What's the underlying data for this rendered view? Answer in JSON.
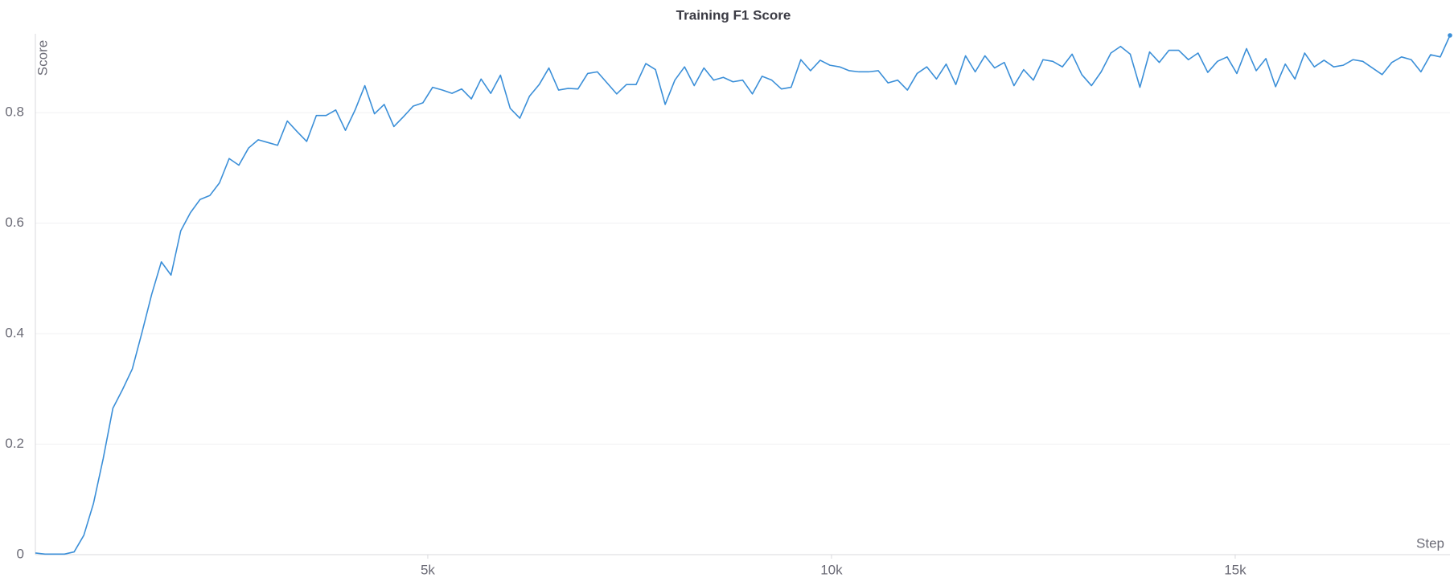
{
  "chart_data": {
    "type": "line",
    "title": "Training F1 Score",
    "y_label": "Score",
    "x_label": "Step",
    "x": [
      140,
      260,
      380,
      500,
      620,
      740,
      860,
      980,
      1100,
      1220,
      1340,
      1460,
      1580,
      1700,
      1820,
      1940,
      2060,
      2180,
      2300,
      2420,
      2540,
      2660,
      2780,
      2900,
      3020,
      3140,
      3260,
      3380,
      3500,
      3620,
      3740,
      3860,
      3980,
      4100,
      4220,
      4340,
      4460,
      4580,
      4700,
      4820,
      4940,
      5060,
      5180,
      5300,
      5420,
      5540,
      5660,
      5780,
      5900,
      6020,
      6140,
      6260,
      6380,
      6500,
      6620,
      6740,
      6860,
      6980,
      7100,
      7220,
      7340,
      7460,
      7580,
      7700,
      7820,
      7940,
      8060,
      8180,
      8300,
      8420,
      8540,
      8660,
      8780,
      8900,
      9020,
      9140,
      9260,
      9380,
      9500,
      9620,
      9740,
      9860,
      9980,
      10100,
      10220,
      10340,
      10460,
      10580,
      10700,
      10820,
      10940,
      11060,
      11180,
      11300,
      11420,
      11540,
      11660,
      11780,
      11900,
      12020,
      12140,
      12260,
      12380,
      12500,
      12620,
      12740,
      12860,
      12980,
      13100,
      13220,
      13340,
      13460,
      13580,
      13700,
      13820,
      13940,
      14060,
      14180,
      14300,
      14420,
      14540,
      14660,
      14780,
      14900,
      15020,
      15140,
      15260,
      15380,
      15500,
      15620,
      15740,
      15860,
      15980,
      16100,
      16220,
      16340,
      16460,
      16580,
      16700,
      16820,
      16940,
      17060,
      17180,
      17300,
      17420,
      17540,
      17660
    ],
    "series": [
      {
        "name": "Training F1 Score",
        "color": "#3b8fd8",
        "values": [
          0.003,
          0.001,
          0.001,
          0.001,
          0.005,
          0.035,
          0.093,
          0.174,
          0.265,
          0.299,
          0.336,
          0.402,
          0.471,
          0.53,
          0.506,
          0.586,
          0.619,
          0.643,
          0.65,
          0.673,
          0.717,
          0.705,
          0.736,
          0.751,
          0.746,
          0.741,
          0.785,
          0.766,
          0.748,
          0.795,
          0.795,
          0.805,
          0.768,
          0.805,
          0.849,
          0.798,
          0.815,
          0.775,
          0.793,
          0.812,
          0.818,
          0.846,
          0.841,
          0.835,
          0.843,
          0.825,
          0.861,
          0.835,
          0.868,
          0.808,
          0.79,
          0.83,
          0.851,
          0.881,
          0.841,
          0.844,
          0.843,
          0.871,
          0.874,
          0.854,
          0.834,
          0.851,
          0.851,
          0.889,
          0.878,
          0.815,
          0.859,
          0.883,
          0.849,
          0.881,
          0.859,
          0.864,
          0.856,
          0.859,
          0.834,
          0.866,
          0.859,
          0.843,
          0.846,
          0.896,
          0.876,
          0.895,
          0.886,
          0.883,
          0.876,
          0.874,
          0.874,
          0.876,
          0.854,
          0.859,
          0.841,
          0.871,
          0.883,
          0.861,
          0.888,
          0.851,
          0.903,
          0.874,
          0.903,
          0.881,
          0.891,
          0.849,
          0.878,
          0.859,
          0.896,
          0.893,
          0.883,
          0.906,
          0.869,
          0.849,
          0.874,
          0.908,
          0.92,
          0.906,
          0.846,
          0.91,
          0.891,
          0.913,
          0.913,
          0.896,
          0.908,
          0.873,
          0.893,
          0.901,
          0.871,
          0.916,
          0.876,
          0.898,
          0.847,
          0.888,
          0.861,
          0.908,
          0.883,
          0.895,
          0.883,
          0.886,
          0.896,
          0.893,
          0.881,
          0.869,
          0.891,
          0.901,
          0.896,
          0.874,
          0.905,
          0.901,
          0.94
        ]
      }
    ],
    "xlim": [
      140,
      17660
    ],
    "ylim": [
      0,
      0.94
    ],
    "xticks": [
      {
        "value": 5000,
        "label": "5k"
      },
      {
        "value": 10000,
        "label": "10k"
      },
      {
        "value": 15000,
        "label": "15k"
      }
    ],
    "yticks": [
      0,
      0.2,
      0.4,
      0.6,
      0.8
    ],
    "grid": true
  }
}
